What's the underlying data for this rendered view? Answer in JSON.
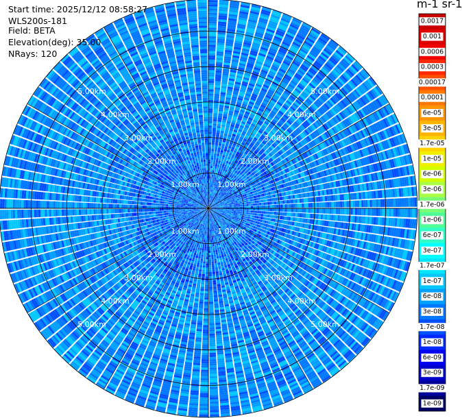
{
  "info": {
    "start_time": "Start time: 2025/12/12 08:58:27",
    "instrument": "WLS200s-181",
    "field": "Field: BETA",
    "elevation": "Elevation(deg): 35.00",
    "nrays": "NRays: 120"
  },
  "colorbar_title": "m-1 sr-1",
  "chart_data": {
    "type": "heatmap",
    "projection": "polar",
    "field": "BETA",
    "instrument": "WLS200s-181",
    "start_time": "2025/12/12 08:58:27",
    "elevation_deg": 35.0,
    "n_rays": 120,
    "max_range_km": 5.9,
    "range_rings_km": [
      1,
      2,
      3,
      4,
      5
    ],
    "range_labels": [
      "1.00km",
      "2.00km",
      "3.00km",
      "4.00km",
      "5.00km"
    ],
    "colorbar": {
      "scale": "log",
      "range": [
        1e-09,
        0.0017
      ],
      "tick_labels": [
        "0.0017",
        "0.001",
        "0.0006",
        "0.0003",
        "0.00017",
        "0.0001",
        "6e-05",
        "3e-05",
        "1.7e-05",
        "1e-05",
        "6e-06",
        "3e-06",
        "1.7e-06",
        "1e-06",
        "6e-07",
        "3e-07",
        "1.7e-07",
        "1e-07",
        "6e-08",
        "3e-08",
        "1.7e-08",
        "1e-08",
        "6e-09",
        "3e-09",
        "1.7e-09",
        "1e-09"
      ],
      "colors": [
        "#c80000",
        "#dc0000",
        "#f00000",
        "#ff2800",
        "#ff5000",
        "#ff7800",
        "#ff9600",
        "#ffb400",
        "#ffd200",
        "#f0f000",
        "#d2ff00",
        "#aaff46",
        "#78ff78",
        "#50ff96",
        "#32ffc8",
        "#00ffff",
        "#00e6ff",
        "#00c8ff",
        "#00a0ff",
        "#0078ff",
        "#0050ff",
        "#0028ff",
        "#0000f0",
        "#0000c8",
        "#00009b",
        "#000064"
      ]
    },
    "dominant_value_range_near": [
      1e-08,
      1e-07
    ],
    "dominant_value_range_far": [
      1e-08,
      1e-07
    ]
  }
}
